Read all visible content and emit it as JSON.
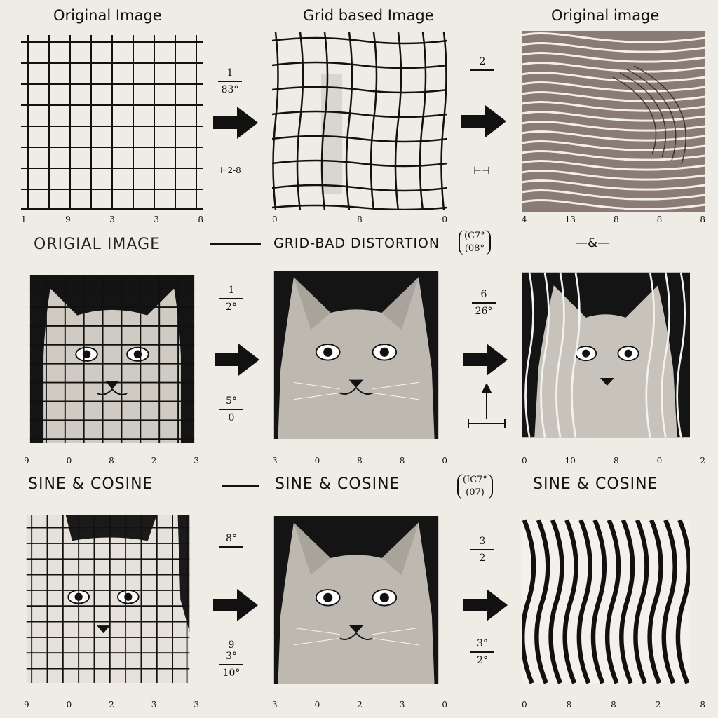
{
  "row1": {
    "col1_title": "Original Image",
    "col2_title": "Grid based Image",
    "col3_title": "Original image",
    "ticks_col1": [
      "1",
      "9",
      "3",
      "3",
      "8"
    ],
    "ticks_col2": [
      "0",
      "8",
      "0"
    ],
    "ticks_col3": [
      "4",
      "13",
      "8",
      "8",
      "8"
    ],
    "ann1": [
      "1",
      "83°",
      "⊢2-8"
    ],
    "ann2": [
      "2",
      "⊢⊣"
    ]
  },
  "row2": {
    "col1_title": "ORIGIAL IMAGE",
    "col2_title": "GRID-BAD DISTORTION",
    "note": [
      "(C7°",
      "(08°"
    ],
    "col3_title": "—&—",
    "ticks_col1": [
      "9",
      "0",
      "8",
      "2",
      "3"
    ],
    "ticks_col2": [
      "3",
      "0",
      "8",
      "8",
      "0"
    ],
    "ticks_col3": [
      "0",
      "10",
      "8",
      "0",
      "2"
    ],
    "ann1": [
      "1",
      "2°",
      "5°",
      "0"
    ],
    "ann2": [
      "6",
      "26°"
    ]
  },
  "row3": {
    "col1_title": "SINE & COSINE",
    "col2_title": "SINE & COSINE",
    "note": [
      "(IC7°",
      "(07)"
    ],
    "col3_title": "SINE & COSINE",
    "ticks_col1": [
      "9",
      "0",
      "2",
      "3",
      "3"
    ],
    "ticks_col2": [
      "3",
      "0",
      "2",
      "3",
      "0"
    ],
    "ticks_col3": [
      "0",
      "8",
      "8",
      "2",
      "8"
    ],
    "ann1": [
      "8°",
      "9",
      "3°",
      "10°"
    ],
    "ann2": [
      "3",
      "2",
      "3°",
      "2°"
    ]
  },
  "colors": {
    "background": "#efece5",
    "ink": "#111111",
    "panel_dark": "#141414"
  }
}
